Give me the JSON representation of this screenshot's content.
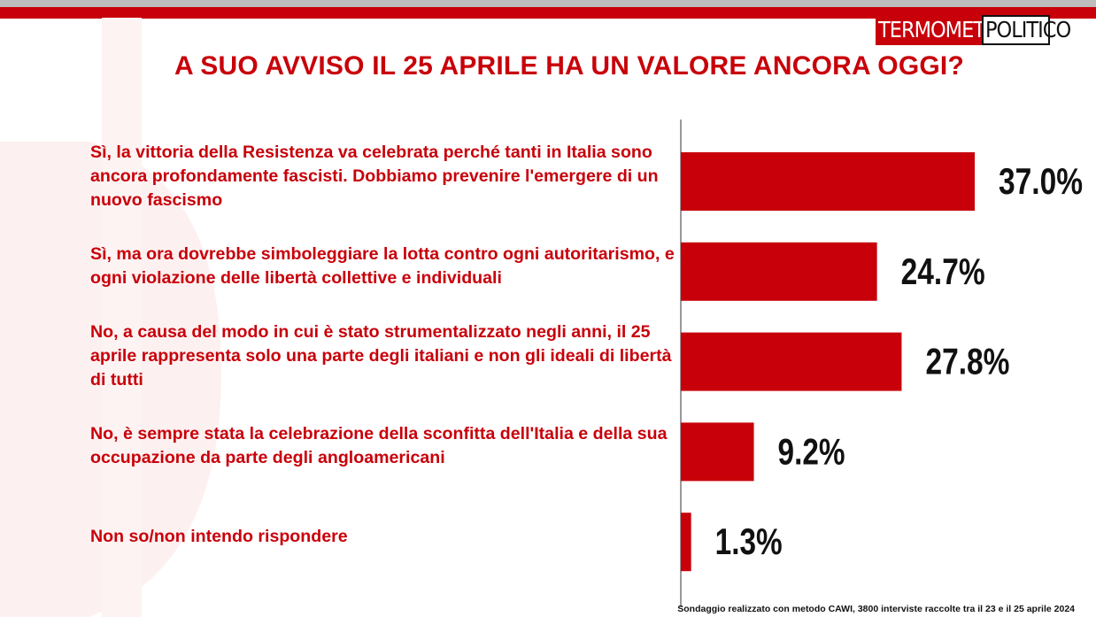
{
  "chart_data": {
    "type": "hbar",
    "title": "A SUO AVVISO IL 25 APRILE HA UN VALORE ANCORA OGGI?",
    "categories": [
      "Sì, la vittoria della Resistenza va celebrata perché tanti in Italia sono ancora profondamente fascisti. Dobbiamo prevenire l'emergere di un nuovo fascismo",
      "Sì, ma ora dovrebbe simboleggiare la lotta contro ogni autoritarismo, e ogni violazione delle libertà collettive e individuali",
      "No, a causa del modo in cui è stato strumentalizzato negli anni, il 25 aprile rappresenta solo una parte degli italiani e non gli ideali di libertà di tutti",
      "No, è sempre stata la celebrazione della sconfitta dell'Italia e della sua occupazione da parte degli angloamericani",
      "Non so/non intendo rispondere"
    ],
    "values": [
      37.0,
      24.7,
      27.8,
      9.2,
      1.3
    ],
    "value_labels": [
      "37.0%",
      "24.7%",
      "27.8%",
      "9.2%",
      "1.3%"
    ],
    "color": "#c8000a",
    "source": "Sondaggio realizzato con metodo CAWI, 3800 interviste raccolte tra il 23 e il 25 aprile 2024",
    "logo": [
      "TERMOMETRO",
      "POLITICO"
    ]
  }
}
